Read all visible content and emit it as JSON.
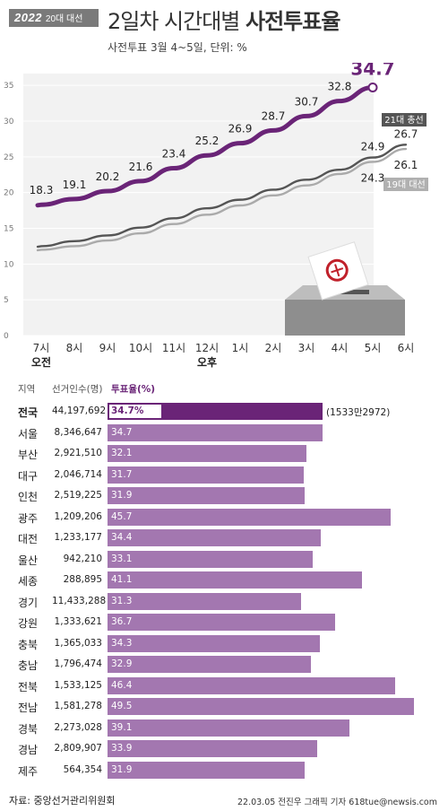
{
  "header": {
    "logo_year": "2022",
    "logo_election": "20대 대선",
    "title_prefix": "2일차 시간대별 ",
    "title_bold": "사전투표율",
    "subtitle": "사전투표 3월 4~5일, 단위: %"
  },
  "chart_data": [
    {
      "type": "line",
      "categories": [
        "7시",
        "8시",
        "9시",
        "10시",
        "11시",
        "12시",
        "1시",
        "2시",
        "3시",
        "4시",
        "5시",
        "6시"
      ],
      "period_labels": {
        "am": "오전",
        "pm": "오후"
      },
      "ylim": [
        0,
        35
      ],
      "yticks": [
        0,
        5,
        10,
        15,
        20,
        25,
        30,
        35
      ],
      "series": [
        {
          "name": "20대 대선",
          "color": "#6a2477",
          "values": [
            18.3,
            19.1,
            20.2,
            21.6,
            23.4,
            25.2,
            26.9,
            28.7,
            30.7,
            32.8,
            34.7,
            null
          ],
          "labels": [
            "18.3",
            "19.1",
            "20.2",
            "21.6",
            "23.4",
            "25.2",
            "26.9",
            "28.7",
            "30.7",
            "32.8",
            "34.7",
            ""
          ]
        },
        {
          "name": "21대 총선",
          "color": "#555555",
          "values": [
            12.5,
            13.2,
            14.0,
            15.1,
            16.4,
            17.8,
            19.0,
            20.4,
            21.8,
            23.2,
            24.9,
            26.7
          ],
          "labels": [
            "",
            "",
            "",
            "",
            "",
            "",
            "",
            "",
            "",
            "",
            "24.9",
            "26.7"
          ]
        },
        {
          "name": "19대 대선",
          "color": "#aaaaaa",
          "values": [
            12.0,
            12.5,
            13.3,
            14.3,
            15.6,
            16.9,
            18.2,
            19.6,
            21.0,
            22.6,
            24.3,
            26.1
          ],
          "labels": [
            "",
            "",
            "",
            "",
            "",
            "",
            "",
            "",
            "",
            "",
            "24.3",
            "26.1"
          ]
        }
      ],
      "grid": true
    },
    {
      "type": "bar",
      "headers": {
        "region": "지역",
        "voters": "선거인수(명)",
        "rate": "투표율(%)"
      },
      "categories": [
        "전국",
        "서울",
        "부산",
        "대구",
        "인천",
        "광주",
        "대전",
        "울산",
        "세종",
        "경기",
        "강원",
        "충북",
        "충남",
        "전북",
        "전남",
        "경북",
        "경남",
        "제주"
      ],
      "voters": [
        "44,197,692",
        "8,346,647",
        "2,921,510",
        "2,046,714",
        "2,519,225",
        "1,209,206",
        "1,233,177",
        "942,210",
        "288,895",
        "11,433,288",
        "1,333,621",
        "1,365,033",
        "1,796,474",
        "1,533,125",
        "1,581,278",
        "2,273,028",
        "2,809,907",
        "564,354"
      ],
      "values": [
        34.7,
        34.7,
        32.1,
        31.7,
        31.9,
        45.7,
        34.4,
        33.1,
        41.1,
        31.3,
        36.7,
        34.3,
        32.9,
        46.4,
        49.5,
        39.1,
        33.9,
        31.9
      ],
      "value_labels": [
        "34.7%",
        "34.7",
        "32.1",
        "31.7",
        "31.9",
        "45.7",
        "34.4",
        "33.1",
        "41.1",
        "31.3",
        "36.7",
        "34.3",
        "32.9",
        "46.4",
        "49.5",
        "39.1",
        "33.9",
        "31.9"
      ],
      "total_note": "(1533만2972)",
      "colors": {
        "total": "#6a2477",
        "region": "#a377b0"
      }
    }
  ],
  "footer": {
    "source": "자료: 중앙선거관리위원회",
    "credit": "22.03.05 전진우 그래픽 기자 618tue@newsis.com",
    "watermark": "NEWSIS"
  }
}
